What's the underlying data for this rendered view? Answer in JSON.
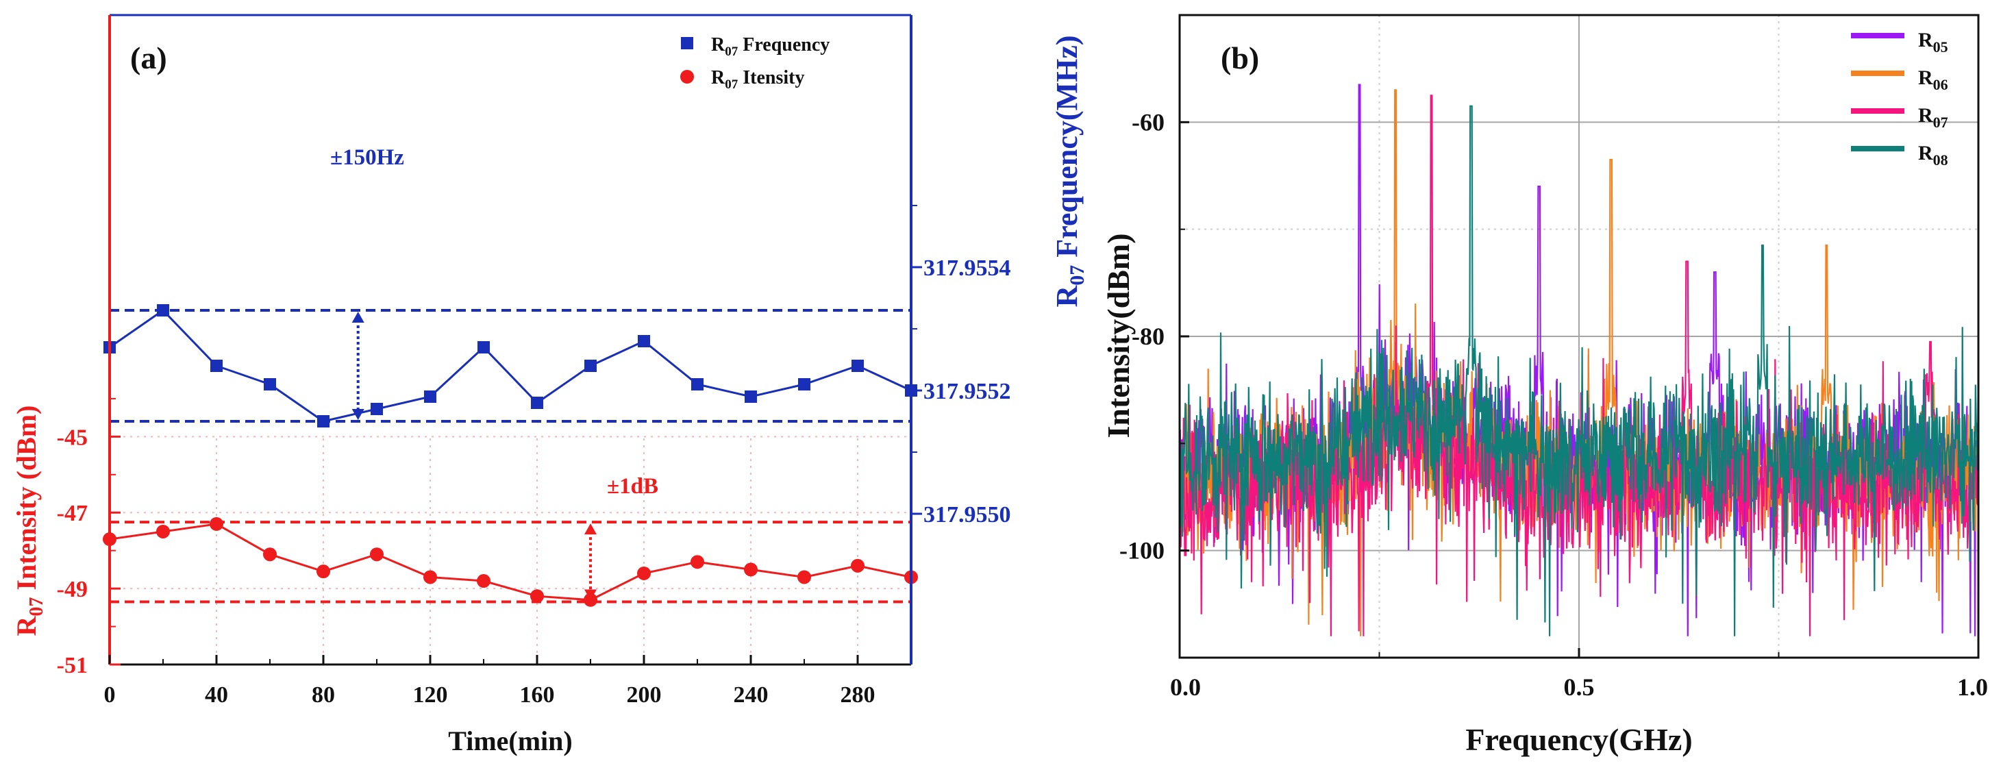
{
  "chart_data": [
    {
      "panel_label": "(a)",
      "type": "line",
      "xlabel": "Time(min)",
      "x_ticks": [
        "0",
        "40",
        "80",
        "120",
        "160",
        "200",
        "240",
        "280"
      ],
      "xlim": [
        0,
        300
      ],
      "left_axis": {
        "ylabel_main": "R",
        "ylabel_sub": "07",
        "ylabel_rest": " Intensity (dBm)",
        "ticks": [
          "-45",
          "-47",
          "-49",
          "-51"
        ],
        "ylim": [
          -51,
          -33.9
        ],
        "color": "#ee1c1c"
      },
      "right_axis": {
        "ylabel_main": "R",
        "ylabel_sub": "07",
        "ylabel_rest": " Frequency(MHz)",
        "ticks": [
          "317.9554",
          "317.9552",
          "317.9550"
        ],
        "color": "#1a2fb8"
      },
      "legend": [
        {
          "main": "R",
          "sub": "07",
          "rest": " Frequency",
          "color": "#1a2fb8",
          "marker": "square"
        },
        {
          "main": "R",
          "sub": "07",
          "rest": " Itensity",
          "color": "#ee1c1c",
          "marker": "circle"
        }
      ],
      "series": [
        {
          "name": "R07 Frequency",
          "axis": "right",
          "color": "#1a2fb8",
          "x": [
            0,
            20,
            40,
            60,
            80,
            100,
            120,
            140,
            160,
            180,
            200,
            220,
            240,
            260,
            280,
            300
          ],
          "values": [
            317.95527,
            317.95533,
            317.95524,
            317.95521,
            317.95515,
            317.95517,
            317.95519,
            317.95527,
            317.95518,
            317.95524,
            317.95528,
            317.95521,
            317.95519,
            317.95521,
            317.95524,
            317.9552
          ]
        },
        {
          "name": "R07 Itensity",
          "axis": "left",
          "color": "#ee1c1c",
          "x": [
            0,
            20,
            40,
            60,
            80,
            100,
            120,
            140,
            160,
            180,
            200,
            220,
            240,
            260,
            280,
            300
          ],
          "values": [
            -47.7,
            -47.5,
            -47.3,
            -48.1,
            -48.55,
            -48.1,
            -48.7,
            -48.8,
            -49.2,
            -49.3,
            -48.6,
            -48.3,
            -48.5,
            -48.7,
            -48.4,
            -48.7
          ]
        }
      ],
      "freq_band": {
        "upper": 317.95533,
        "lower": 317.95515,
        "label": "±150Hz"
      },
      "intensity_band": {
        "upper": -47.25,
        "lower": -49.35,
        "label": "±1dB"
      }
    },
    {
      "panel_label": "(b)",
      "type": "line",
      "xlabel": "Frequency(GHz)",
      "ylabel": "Intensity(dBm)",
      "x_ticks": [
        "0.0",
        "0.5",
        "1.0"
      ],
      "y_ticks": [
        "-60",
        "-80",
        "-100"
      ],
      "xlim": [
        0,
        1
      ],
      "ylim": [
        -110,
        -50
      ],
      "grid": true,
      "legend_position": "top-right",
      "series": [
        {
          "name": "R05",
          "main": "R",
          "sub": "05",
          "color": "#9b19f5",
          "noise_base": -92,
          "peaks": [
            [
              0.225,
              -56.5
            ],
            [
              0.45,
              -66
            ],
            [
              0.67,
              -74
            ]
          ]
        },
        {
          "name": "R06",
          "main": "R",
          "sub": "06",
          "color": "#f5821f",
          "noise_base": -93,
          "peaks": [
            [
              0.27,
              -57
            ],
            [
              0.54,
              -63.5
            ],
            [
              0.81,
              -71.5
            ]
          ]
        },
        {
          "name": "R07",
          "main": "R",
          "sub": "07",
          "color": "#f5157f",
          "noise_base": -94,
          "peaks": [
            [
              0.315,
              -57.5
            ],
            [
              0.635,
              -73
            ],
            [
              0.94,
              -80.5
            ]
          ]
        },
        {
          "name": "R08",
          "main": "R",
          "sub": "08",
          "color": "#0f8079",
          "noise_base": -91,
          "peaks": [
            [
              0.365,
              -58.5
            ],
            [
              0.73,
              -71.5
            ]
          ]
        }
      ]
    }
  ]
}
